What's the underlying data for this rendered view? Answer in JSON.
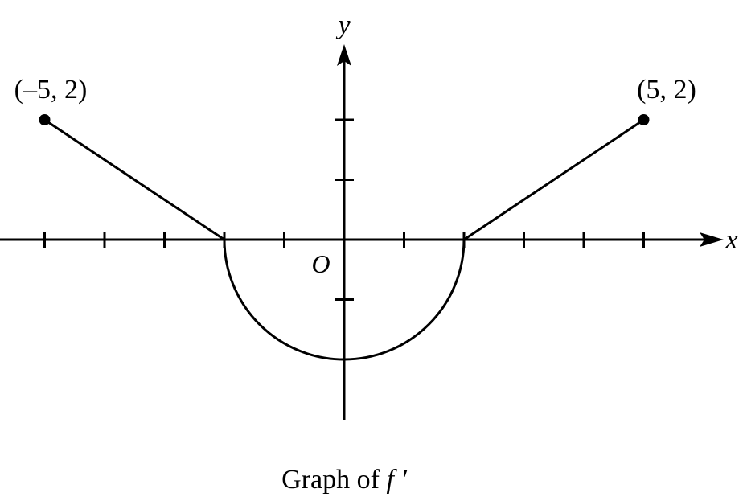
{
  "chart_data": {
    "type": "line",
    "caption_prefix": "Graph of ",
    "caption_function": "f ′",
    "xlabel": "x",
    "ylabel": "y",
    "origin_label": "O",
    "xlim": [
      -5,
      5
    ],
    "ylim": [
      -3,
      3
    ],
    "x_ticks": [
      -5,
      -4,
      -3,
      -2,
      -1,
      1,
      2,
      3,
      4,
      5
    ],
    "y_ticks": [
      -1,
      1,
      2
    ],
    "grid": false,
    "segments": [
      {
        "kind": "line",
        "points": [
          [
            -5,
            2
          ],
          [
            -2,
            0
          ]
        ]
      },
      {
        "kind": "semicircle",
        "center": [
          0,
          0
        ],
        "radius": 2,
        "half": "lower"
      },
      {
        "kind": "line",
        "points": [
          [
            2,
            0
          ],
          [
            5,
            2
          ]
        ]
      }
    ],
    "labeled_points": [
      {
        "x": -5,
        "y": 2,
        "label": "(–5, 2)"
      },
      {
        "x": 5,
        "y": 2,
        "label": "(5, 2)"
      }
    ]
  }
}
